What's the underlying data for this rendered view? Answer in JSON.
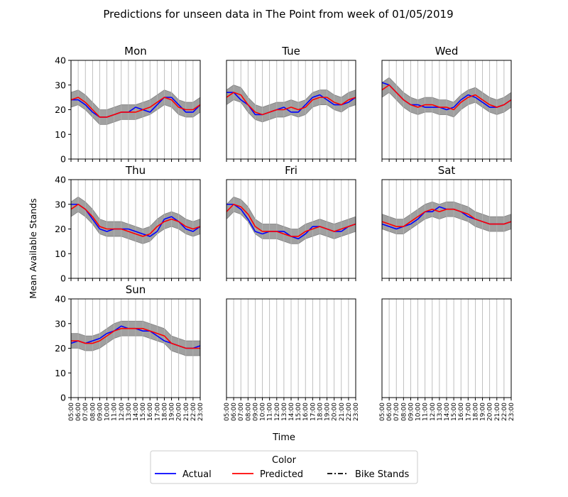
{
  "chart_data": {
    "type": "line",
    "title": "Predictions for unseen data in The Point from week of 01/05/2019",
    "xlabel": "Time",
    "ylabel": "Mean Available Stands",
    "ylim": [
      0,
      40
    ],
    "yticks": [
      0,
      10,
      20,
      30,
      40
    ],
    "grid": "vertical",
    "x": [
      "05:00",
      "06:00",
      "07:00",
      "08:00",
      "09:00",
      "10:00",
      "11:00",
      "12:00",
      "13:00",
      "14:00",
      "15:00",
      "16:00",
      "17:00",
      "18:00",
      "19:00",
      "20:00",
      "21:00",
      "22:00",
      "23:00"
    ],
    "legend": {
      "title": "Color",
      "placement": "bottom-center",
      "entries": [
        {
          "label": "Actual",
          "color": "#0000ff",
          "style": "solid"
        },
        {
          "label": "Predicted",
          "color": "#ff0000",
          "style": "solid"
        },
        {
          "label": "Bike Stands",
          "color": "#000000",
          "style": "dashdot"
        }
      ]
    },
    "panels": [
      {
        "title": "Mon",
        "actual": [
          24,
          24,
          22,
          19,
          17,
          17,
          18,
          19,
          19,
          21,
          20,
          19,
          22,
          25,
          25,
          22,
          19,
          19,
          22
        ],
        "predicted": [
          24,
          25,
          23,
          20,
          17,
          17,
          18,
          19,
          19,
          19,
          20,
          21,
          23,
          25,
          24,
          21,
          20,
          20,
          22
        ],
        "band": [
          3,
          3,
          3,
          3,
          3,
          3,
          3,
          3,
          3,
          3,
          3,
          3,
          3,
          3,
          3,
          3,
          3,
          3,
          3
        ]
      },
      {
        "title": "Tue",
        "actual": [
          27,
          27,
          24,
          22,
          18,
          18,
          19,
          20,
          21,
          19,
          19,
          22,
          25,
          26,
          24,
          22,
          22,
          23,
          25
        ],
        "predicted": [
          25,
          27,
          26,
          22,
          19,
          18,
          19,
          20,
          20,
          21,
          20,
          21,
          24,
          25,
          25,
          23,
          22,
          24,
          25
        ],
        "band": [
          3,
          3,
          3,
          3,
          3,
          3,
          3,
          3,
          3,
          3,
          3,
          3,
          3,
          3,
          3,
          3,
          3,
          3,
          3
        ]
      },
      {
        "title": "Wed",
        "actual": [
          31,
          30,
          27,
          24,
          22,
          22,
          21,
          21,
          21,
          20,
          21,
          24,
          26,
          25,
          23,
          21,
          21,
          22,
          24
        ],
        "predicted": [
          28,
          30,
          27,
          24,
          22,
          21,
          22,
          22,
          21,
          21,
          20,
          23,
          25,
          26,
          24,
          22,
          21,
          22,
          24
        ],
        "band": [
          3,
          3,
          3,
          3,
          3,
          3,
          3,
          3,
          3,
          3,
          3,
          3,
          3,
          3,
          3,
          3,
          3,
          3,
          3
        ]
      },
      {
        "title": "Thu",
        "actual": [
          30,
          30,
          28,
          24,
          20,
          19,
          20,
          20,
          20,
          19,
          18,
          17,
          19,
          24,
          25,
          23,
          20,
          19,
          21
        ],
        "predicted": [
          28,
          30,
          28,
          25,
          21,
          20,
          20,
          20,
          19,
          18,
          17,
          18,
          21,
          23,
          24,
          23,
          21,
          20,
          21
        ],
        "band": [
          3,
          3,
          3,
          3,
          3,
          3,
          3,
          3,
          3,
          3,
          3,
          3,
          3,
          3,
          3,
          3,
          3,
          3,
          3
        ]
      },
      {
        "title": "Fri",
        "actual": [
          30,
          30,
          28,
          24,
          19,
          18,
          19,
          19,
          19,
          17,
          16,
          18,
          21,
          21,
          20,
          19,
          19,
          21,
          22
        ],
        "predicted": [
          27,
          30,
          29,
          26,
          21,
          19,
          19,
          19,
          18,
          17,
          17,
          19,
          20,
          21,
          20,
          19,
          20,
          21,
          22
        ],
        "band": [
          3,
          3,
          3,
          3,
          3,
          3,
          3,
          3,
          3,
          3,
          3,
          3,
          3,
          3,
          3,
          3,
          3,
          3,
          3
        ]
      },
      {
        "title": "Sat",
        "actual": [
          22,
          21,
          20,
          21,
          22,
          24,
          27,
          27,
          29,
          28,
          28,
          27,
          25,
          24,
          23,
          22,
          22,
          22,
          23
        ],
        "predicted": [
          23,
          22,
          21,
          21,
          23,
          25,
          27,
          28,
          27,
          28,
          28,
          27,
          26,
          24,
          23,
          22,
          22,
          22,
          23
        ],
        "band": [
          3,
          3,
          3,
          3,
          3,
          3,
          3,
          3,
          3,
          3,
          3,
          3,
          3,
          3,
          3,
          3,
          3,
          3,
          3
        ]
      },
      {
        "title": "Sun",
        "actual": [
          22,
          23,
          22,
          23,
          24,
          26,
          27,
          29,
          28,
          28,
          27,
          27,
          25,
          23,
          22,
          21,
          20,
          20,
          21
        ],
        "predicted": [
          23,
          23,
          22,
          22,
          23,
          25,
          27,
          28,
          28,
          28,
          28,
          27,
          26,
          25,
          22,
          21,
          20,
          20,
          20
        ],
        "band": [
          3,
          3,
          3,
          3,
          3,
          3,
          3,
          3,
          3,
          3,
          3,
          3,
          3,
          3,
          3,
          3,
          3,
          3,
          3
        ]
      },
      {
        "title": "",
        "actual": [],
        "predicted": [],
        "band": []
      },
      {
        "title": "",
        "actual": [],
        "predicted": [],
        "band": []
      }
    ]
  }
}
